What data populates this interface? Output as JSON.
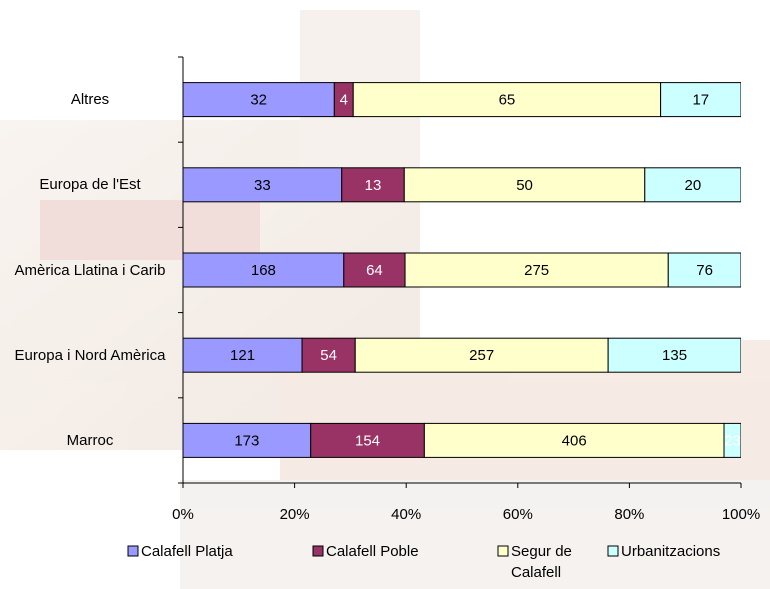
{
  "chart_data": {
    "type": "bar",
    "orientation": "horizontal",
    "stacking": "percent",
    "categories": [
      "Altres",
      "Europa de l'Est",
      "Amèrica Llatina i Carib",
      "Europa i Nord Amèrica",
      "Marroc"
    ],
    "series": [
      {
        "name": "Calafell Platja",
        "color": "#9999ff",
        "values": [
          32,
          33,
          168,
          121,
          173
        ]
      },
      {
        "name": "Calafell Poble",
        "color": "#993366",
        "values": [
          4,
          13,
          64,
          54,
          154
        ]
      },
      {
        "name": "Segur de Calafell",
        "color": "#ffffcc",
        "values": [
          65,
          50,
          275,
          257,
          406
        ]
      },
      {
        "name": "Urbanitzacions",
        "color": "#ccffff",
        "values": [
          17,
          20,
          76,
          135,
          23
        ]
      }
    ],
    "xlim": [
      0,
      100
    ],
    "xticks": [
      {
        "value": 0,
        "label": "0%"
      },
      {
        "value": 20,
        "label": "20%"
      },
      {
        "value": 40,
        "label": "40%"
      },
      {
        "value": 60,
        "label": "60%"
      },
      {
        "value": 80,
        "label": "80%"
      },
      {
        "value": 100,
        "label": "100%"
      }
    ],
    "legend": "bottom"
  }
}
